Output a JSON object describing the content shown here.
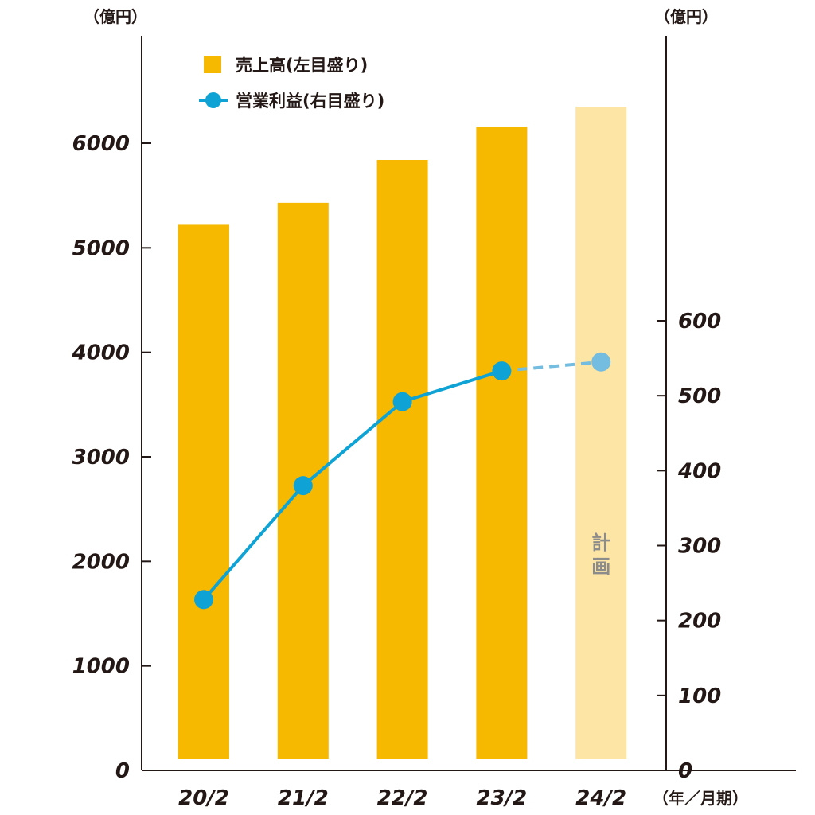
{
  "chart_data": {
    "type": "bar",
    "categories": [
      "20/2",
      "21/2",
      "22/2",
      "23/2",
      "24/2"
    ],
    "series": [
      {
        "name": "売上高(左目盛り)",
        "type": "bar",
        "axis": "left",
        "values": [
          5220,
          5430,
          5840,
          6160,
          6350
        ],
        "color": "#f7b800",
        "plan_color": "#fde5a6"
      },
      {
        "name": "営業利益(右目盛り)",
        "type": "line",
        "axis": "right",
        "values": [
          228,
          380,
          492,
          533,
          545
        ],
        "color": "#0ea3d4",
        "plan_color": "#74bde0"
      }
    ],
    "plan_index": 4,
    "plan_label": "計画",
    "left_axis": {
      "unit": "（億円）",
      "ylim": [
        0,
        6000
      ],
      "ticks": [
        0,
        1000,
        2000,
        3000,
        4000,
        5000,
        6000
      ]
    },
    "right_axis": {
      "unit": "（億円）",
      "ylim": [
        0,
        600
      ],
      "ticks": [
        0,
        100,
        200,
        300,
        400,
        500,
        600
      ]
    },
    "x_unit": "（年／月期）",
    "legend_placement": "top-left",
    "grid": false
  }
}
